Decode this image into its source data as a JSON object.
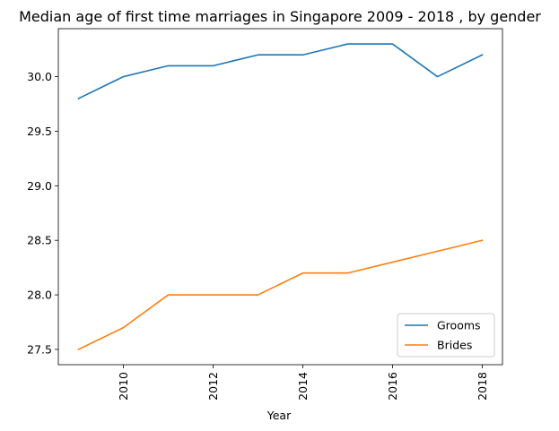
{
  "chart_data": {
    "type": "line",
    "title": "Median age of first time marriages in Singapore 2009 - 2018 , by gender",
    "xlabel": "Year",
    "ylabel": "",
    "x": [
      2009,
      2010,
      2011,
      2012,
      2013,
      2014,
      2015,
      2016,
      2017,
      2018
    ],
    "xlim": [
      2008.55,
      2018.45
    ],
    "ylim": [
      27.36,
      30.44
    ],
    "x_ticks": [
      "2010",
      "2012",
      "2014",
      "2016",
      "2018"
    ],
    "y_ticks": [
      "27.5",
      "28.0",
      "28.5",
      "29.0",
      "29.5",
      "30.0"
    ],
    "x_tick_rotation": "vertical",
    "grid": false,
    "legend_position": "lower-right",
    "series": [
      {
        "name": "Grooms",
        "color": "#1f77b4",
        "values": [
          29.8,
          30.0,
          30.1,
          30.1,
          30.2,
          30.2,
          30.3,
          30.3,
          30.0,
          30.2
        ]
      },
      {
        "name": "Brides",
        "color": "#ff7f0e",
        "values": [
          27.5,
          27.7,
          28.0,
          28.0,
          28.0,
          28.2,
          28.2,
          28.3,
          28.4,
          28.5
        ]
      }
    ]
  }
}
